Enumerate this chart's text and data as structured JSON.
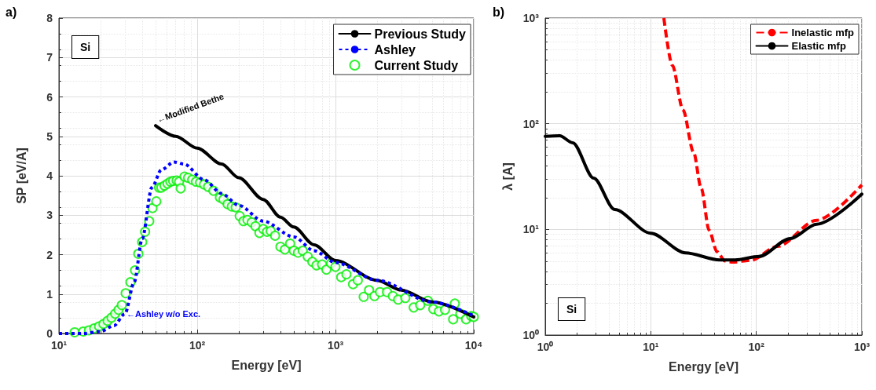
{
  "chart_data": [
    {
      "type": "line",
      "title": "a)",
      "xlabel": "Energy [eV]",
      "ylabel": "SP [eV/A]",
      "log": "x",
      "grid": true,
      "legend": "top right",
      "xlim": [
        10,
        10000
      ],
      "xticks": [
        {
          "value": 10,
          "label": "10¹"
        },
        {
          "value": 100,
          "label": "10²"
        },
        {
          "value": 1000,
          "label": "10³"
        },
        {
          "value": 10000,
          "label": "10⁴"
        }
      ],
      "ylim": [
        0,
        8
      ],
      "yticks": [
        0,
        1,
        2,
        3,
        4,
        5,
        6,
        7,
        8
      ],
      "annotations": [
        "Si",
        {
          "text": "←Modified Bethe",
          "x": 50,
          "y": 5.27
        },
        {
          "text": "←Ashley w/o Exc.",
          "x": 30,
          "y": 0.5
        }
      ],
      "series": [
        {
          "name": "Previous Study",
          "color": "#000000",
          "line_style": "solid",
          "marker": "none",
          "x": [
            50,
            70,
            100,
            150,
            200,
            300,
            400,
            500,
            700,
            1000,
            2000,
            3000,
            5000,
            10000
          ],
          "values": [
            5.27,
            5.0,
            4.7,
            4.3,
            3.95,
            3.4,
            2.95,
            2.7,
            2.25,
            1.85,
            1.35,
            1.1,
            0.8,
            0.42
          ]
        },
        {
          "name": "Ashley",
          "color": "#0000ff",
          "line_style": "dotted",
          "marker": "none",
          "x": [
            10,
            15,
            20,
            25,
            30,
            35,
            40,
            47,
            55,
            68,
            80,
            112,
            150,
            200,
            300,
            500,
            700,
            1000,
            2000,
            5000,
            10000
          ],
          "values": [
            0,
            0,
            0.05,
            0.2,
            0.5,
            1.3,
            2.4,
            3.7,
            4.15,
            4.35,
            4.3,
            3.9,
            3.55,
            3.25,
            2.85,
            2.45,
            2.1,
            1.8,
            1.35,
            0.8,
            0.45
          ]
        },
        {
          "name": "Current Study",
          "type": "scatter",
          "color": "#00ee00",
          "marker": "circle",
          "x": [
            13,
            15,
            16.5,
            18,
            19.5,
            21,
            22.5,
            24,
            25.5,
            27,
            28.5,
            30.4,
            32.9,
            35.5,
            37.5,
            40,
            42,
            45,
            47.5,
            50.6,
            53,
            55,
            58,
            61,
            64,
            67,
            71,
            74,
            76,
            81,
            86,
            92,
            98,
            105,
            112,
            120,
            131,
            146,
            155,
            166,
            178,
            190,
            203,
            216,
            231,
            248,
            264,
            282,
            300,
            320,
            340,
            366,
            400,
            431,
            470,
            500,
            536,
            580,
            630,
            680,
            729,
            800,
            860,
            930,
            1000,
            1100,
            1200,
            1340,
            1450,
            1600,
            1750,
            1915,
            2100,
            2360,
            2600,
            2840,
            3200,
            3680,
            4100,
            4660,
            5100,
            5600,
            6200,
            7100,
            7300,
            8000,
            8800,
            9600,
            10000
          ],
          "values": [
            0.03,
            0.05,
            0.08,
            0.13,
            0.18,
            0.24,
            0.32,
            0.4,
            0.5,
            0.6,
            0.72,
            1.02,
            1.3,
            1.6,
            2.02,
            2.32,
            2.58,
            2.85,
            3.18,
            3.35,
            3.7,
            3.7,
            3.75,
            3.8,
            3.85,
            3.87,
            3.88,
            3.85,
            3.68,
            3.98,
            3.95,
            3.9,
            3.85,
            3.83,
            3.78,
            3.72,
            3.62,
            3.45,
            3.4,
            3.28,
            3.22,
            3.2,
            2.98,
            2.85,
            2.88,
            2.82,
            2.72,
            2.55,
            2.65,
            2.58,
            2.6,
            2.48,
            2.2,
            2.13,
            2.28,
            2.1,
            2.05,
            2.1,
            1.95,
            1.82,
            1.73,
            1.75,
            1.62,
            1.78,
            1.69,
            1.43,
            1.5,
            1.25,
            1.35,
            0.93,
            1.1,
            0.95,
            1.05,
            1.05,
            0.95,
            0.86,
            0.9,
            0.66,
            0.72,
            0.83,
            0.62,
            0.56,
            0.6,
            0.36,
            0.76,
            0.5,
            0.36,
            0.44,
            0.42
          ]
        }
      ]
    },
    {
      "type": "line",
      "title": "b)",
      "xlabel": "Energy [eV]",
      "ylabel": "λ [A]",
      "log": "xy",
      "grid": true,
      "legend": "top right",
      "xlim": [
        1,
        1000
      ],
      "xticks": [
        {
          "value": 1,
          "label": "10⁰"
        },
        {
          "value": 10,
          "label": "10¹"
        },
        {
          "value": 100,
          "label": "10²"
        },
        {
          "value": 1000,
          "label": "10³"
        }
      ],
      "ylim": [
        1,
        1000
      ],
      "yticks": [
        {
          "value": 1,
          "label": "10⁰"
        },
        {
          "value": 10,
          "label": "10¹"
        },
        {
          "value": 100,
          "label": "10²"
        },
        {
          "value": 1000,
          "label": "10³"
        }
      ],
      "annotations": [
        "Si"
      ],
      "series": [
        {
          "name": "Inelastic mfp",
          "color": "#ff0000",
          "line_style": "dashed",
          "marker": "none",
          "x": [
            13.3,
            16,
            20.2,
            25.4,
            30.1,
            35.7,
            42.4,
            50.4,
            59.7,
            89,
            158,
            373,
            1000
          ],
          "values": [
            1000,
            357,
            135,
            54,
            24.3,
            9.8,
            6.15,
            5.03,
            4.9,
            5.1,
            6.9,
            12.2,
            26.4
          ]
        },
        {
          "name": "Elastic mfp",
          "color": "#000000",
          "line_style": "solid",
          "marker": "none",
          "x": [
            1,
            1.37,
            1.82,
            2.88,
            4.55,
            10,
            21.3,
            44.9,
            63,
            106,
            210,
            373,
            1000
          ],
          "values": [
            76,
            77,
            66,
            30.5,
            15.4,
            9.2,
            6.0,
            5.13,
            5.13,
            5.55,
            8.2,
            11.2,
            21.6
          ]
        }
      ]
    }
  ]
}
